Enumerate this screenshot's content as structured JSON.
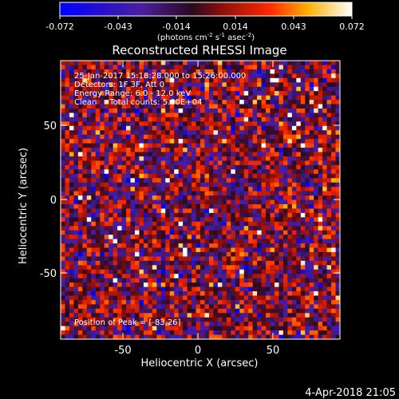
{
  "colorbar": {
    "ticks": [
      "-0.072",
      "-0.043",
      "-0.014",
      "0.014",
      "0.043",
      "0.072"
    ],
    "unit_label_html": "(photons cm<tspan baseline-shift=\"super\" font-size=\"7\">-2</tspan> s<tspan baseline-shift=\"super\" font-size=\"7\">-1</tspan> asec<tspan baseline-shift=\"super\" font-size=\"7\">-2</tspan>)",
    "range": [
      -0.072,
      0.072
    ]
  },
  "plot": {
    "title": "Reconstructed RHESSI Image",
    "annotations": {
      "time": "25-Jan-2017 15:18:28.000 to 15:26:00.000",
      "detectors": "Detectors: 1F 3F, Att 0",
      "energy": "Energy Range: 6.0 - 12.0 keV",
      "clean": "Clean     Total counts: 5.00E+04",
      "peak": "Position of Peak = [-83,26]"
    },
    "xlabel": "Heliocentric X (arcsec)",
    "ylabel": "Heliocentric Y (arcsec)",
    "xticks": [
      "-50",
      "0",
      "50"
    ],
    "yticks": [
      "50",
      "0",
      "-50"
    ]
  },
  "footer": {
    "timestamp": "4-Apr-2018 21:05"
  },
  "chart_data": {
    "type": "heatmap",
    "title": "Reconstructed RHESSI Image",
    "xlabel": "Heliocentric X (arcsec)",
    "ylabel": "Heliocentric Y (arcsec)",
    "xlim": [
      -94,
      93
    ],
    "ylim": [
      -95,
      92
    ],
    "colorbar_range": [
      -0.072,
      0.072
    ],
    "colormap": "blue-purple-red-yellow-white",
    "grid_size": [
      64,
      64
    ]
  }
}
